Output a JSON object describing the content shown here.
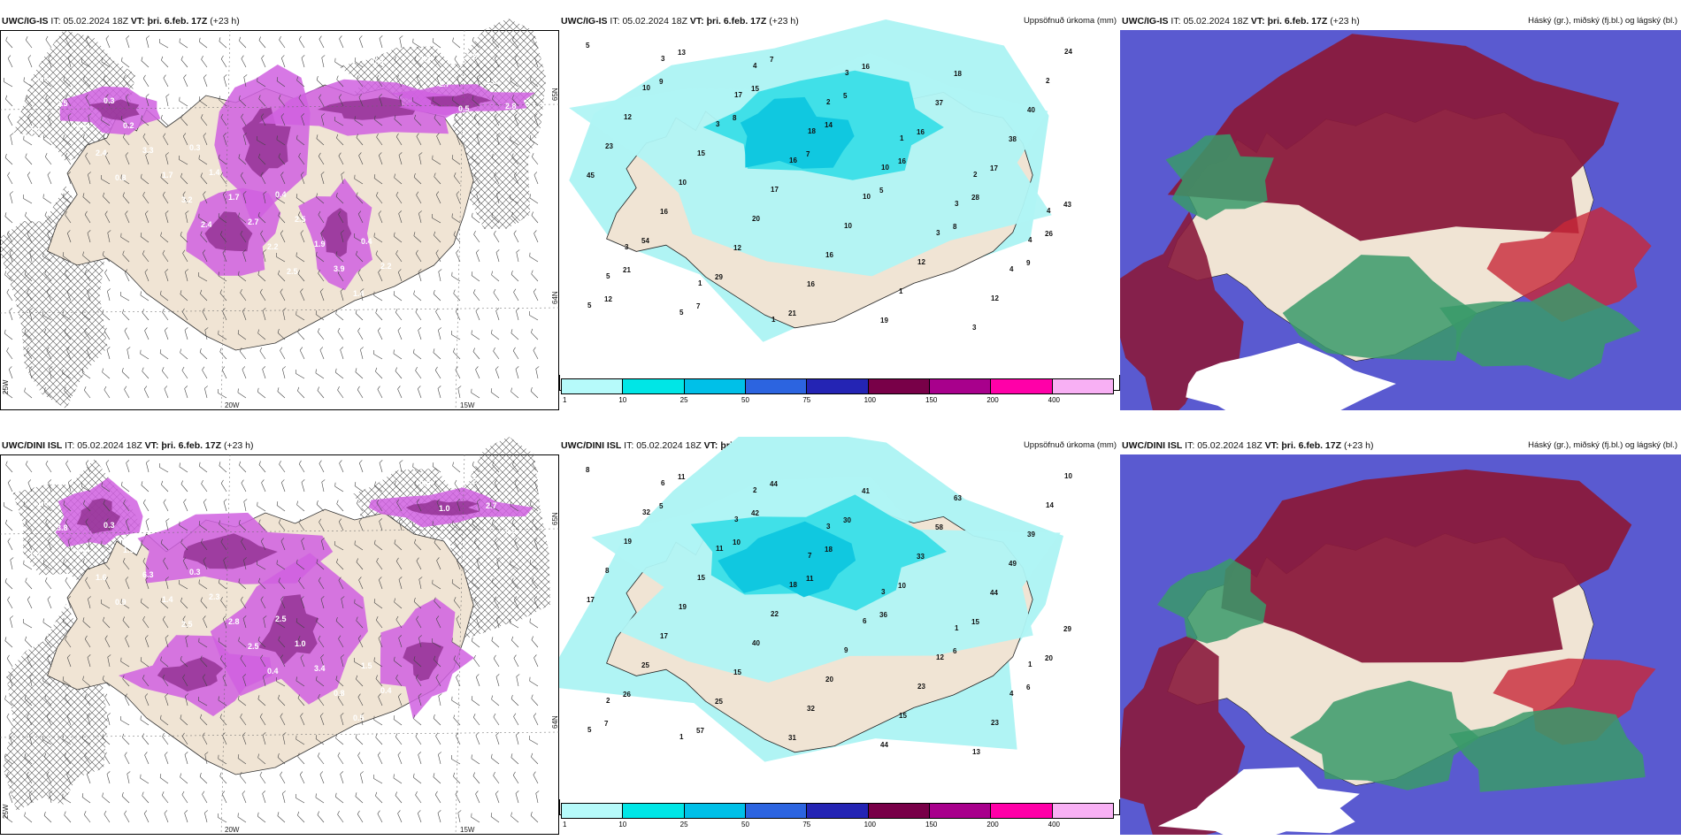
{
  "rows": [
    {
      "model": "UWC/IG-IS",
      "it_label": "IT:",
      "it_value": "05.02.2024 18Z",
      "vt_label": "VT:",
      "vt_value": "þri. 6.feb. 17Z",
      "lead": "(+23 h)",
      "precip_title": "Uppsöfnuð úrkoma (mm)",
      "cloud_title": "Háský (gr.), miðský (fj.bl.) og lágský (bl.)",
      "left_axis_labels": [
        "20W",
        "15W",
        "65N",
        "64N",
        "25W"
      ],
      "precip_numbers": [
        "5",
        "9",
        "8",
        "7",
        "5",
        "8",
        "9",
        "12",
        "13",
        "15",
        "14",
        "16",
        "28",
        "26",
        "21",
        "7",
        "7",
        "5",
        "16",
        "17",
        "43",
        "54",
        "29",
        "21",
        "16",
        "37",
        "38",
        "45",
        "16",
        "12",
        "16",
        "19",
        "18",
        "40",
        "23",
        "10",
        "20",
        "16",
        "1",
        "3",
        "2",
        "12",
        "15",
        "17",
        "10",
        "12",
        "12",
        "24",
        "10",
        "3",
        "16",
        "10",
        "3",
        "4",
        "5",
        "3",
        "17",
        "18",
        "10",
        "3",
        "4",
        "5",
        "5",
        "4",
        "2",
        "1",
        "2",
        "4",
        "3",
        "1",
        "1",
        "3"
      ],
      "wind_numbers": [
        "0.3",
        "0.3",
        "0.3",
        "0.4",
        "0.4",
        "0.4",
        "0.6",
        "0.2",
        "1.4",
        "2.5",
        "2.2",
        "2.8",
        "2.5",
        "3.3",
        "1.7",
        "1.9",
        "1.9",
        "2.8",
        "2.6",
        "1.7",
        "2.7",
        "3.9",
        "3.3",
        "2.8",
        "2.4",
        "3.2",
        "2.2",
        "1.4",
        "2.7",
        "3.4",
        "0.8",
        "2.4",
        "2.5",
        "0.8",
        "0.5",
        "1.8"
      ]
    },
    {
      "model": "UWC/DINI ISL",
      "it_label": "IT:",
      "it_value": "05.02.2024 18Z",
      "vt_label": "VT:",
      "vt_value": "þri. 6.feb. 17Z",
      "lead": "(+23 h)",
      "precip_title": "Uppsöfnuð úrkoma (mm)",
      "cloud_title": "Háský (gr.), miðský (fj.bl.) og lágský (bl.)",
      "left_axis_labels": [
        "20W",
        "15W",
        "65N",
        "64N",
        "25W"
      ],
      "precip_numbers": [
        "8",
        "5",
        "10",
        "11",
        "36",
        "6",
        "6",
        "7",
        "11",
        "42",
        "18",
        "10",
        "15",
        "20",
        "26",
        "57",
        "44",
        "30",
        "33",
        "44",
        "29",
        "25",
        "25",
        "31",
        "41",
        "58",
        "49",
        "17",
        "17",
        "15",
        "32",
        "44",
        "63",
        "39",
        "8",
        "19",
        "40",
        "20",
        "15",
        "13",
        "14",
        "19",
        "15",
        "22",
        "9",
        "23",
        "23",
        "10",
        "32",
        "11",
        "18",
        "6",
        "12",
        "4",
        "5",
        "6",
        "3",
        "7",
        "3",
        "1",
        "1",
        "2",
        "1",
        "2",
        "3"
      ],
      "wind_numbers": [
        "0.3",
        "0.3",
        "0.3",
        "2.5",
        "1.5",
        "1.7",
        "1.6",
        "1.9",
        "2.3",
        "1.0",
        "0.4",
        "2.2",
        "3.8",
        "6.3",
        "2.8",
        "3.4",
        "3.3",
        "2.7",
        "2.8",
        "1.4",
        "2.5",
        "0.8",
        "0.6",
        "0.5",
        "1.6",
        "2.5",
        "0.4",
        "0.5",
        "1.0",
        "1.0",
        "0.9"
      ]
    }
  ],
  "colorbar": {
    "ticks": [
      "1",
      "10",
      "25",
      "50",
      "75",
      "100",
      "150",
      "200",
      "400"
    ],
    "colors": [
      "#b6fafa",
      "#00e6e6",
      "#00c0e8",
      "#2c64e0",
      "#2424b4",
      "#780048",
      "#a8008c",
      "#ff00a8",
      "#f8b0f4"
    ]
  },
  "colors": {
    "land": "#f0e4d4",
    "cyan_light": "#b0f4f4",
    "cyan_mid": "#40e0e8",
    "cyan_dark": "#10c8e0",
    "magenta": "#d060e0",
    "magenta_dark": "#903090",
    "maroon": "#8a1a3c",
    "blue_cloud": "#5a5ad0",
    "green_cloud": "#3a9a6a",
    "red_cloud": "#c82838"
  }
}
